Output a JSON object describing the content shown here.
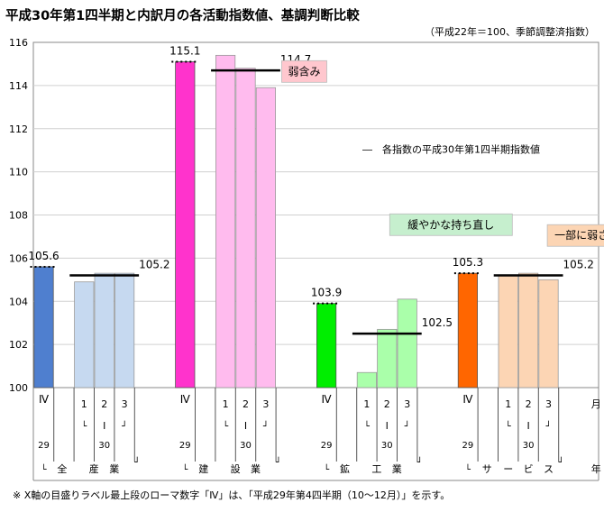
{
  "header": {
    "title": "平成30年第1四半期と内訳月の各活動指数値、基調判断比較",
    "subtitle": "（平成22年＝100、季節調整済指数）"
  },
  "footnote": "※ X軸の目盛りラベル最上段のローマ数字「Ⅳ」は、「平成29年第4四半期（10～12月）」を示す。",
  "colors": {
    "all_q4": "#4f7fcf",
    "all_month": "#c6d9f0",
    "const_q4": "#ff33cc",
    "const_month": "#ffbbee",
    "mining_q4": "#00ee00",
    "mining_month": "#aaffaa",
    "service_q4": "#ff6600",
    "service_month": "#fcd5b4",
    "ref_line": "#000000"
  },
  "chart_data": {
    "type": "bar",
    "ylim": [
      100,
      116
    ],
    "yticks": [
      100,
      102,
      104,
      106,
      108,
      110,
      112,
      114,
      116
    ],
    "grid": "horizontal",
    "groups": [
      {
        "name": "全産業",
        "sector_chars": [
          "全",
          "産",
          "業"
        ],
        "q4_label": "105.6",
        "q1_label": "105.2",
        "q4": 105.6,
        "months": [
          104.9,
          105.3,
          105.3
        ],
        "q1_2018": 105.2,
        "q4_color": "all_q4",
        "month_color": "all_month"
      },
      {
        "name": "建設業",
        "sector_chars": [
          "建",
          "設",
          "業"
        ],
        "q4_label": "115.1",
        "q1_label": "114.7",
        "q4": 115.1,
        "months": [
          115.4,
          114.8,
          113.9
        ],
        "q1_2018": 114.7,
        "q4_color": "const_q4",
        "month_color": "const_month"
      },
      {
        "name": "鉱工業",
        "sector_chars": [
          "鉱",
          "工",
          "業"
        ],
        "q4_label": "103.9",
        "q1_label": "102.5",
        "q4": 103.9,
        "months": [
          100.7,
          102.7,
          104.1
        ],
        "q1_2018": 102.5,
        "q4_color": "mining_q4",
        "month_color": "mining_month"
      },
      {
        "name": "サービス",
        "sector_chars": [
          "サ",
          "ー",
          "ビ",
          "ス"
        ],
        "q4_label": "105.3",
        "q1_label": "105.2",
        "q4": 105.3,
        "months": [
          105.2,
          105.3,
          105.0
        ],
        "q1_2018": 105.2,
        "q4_color": "service_q4",
        "month_color": "service_month"
      }
    ],
    "x_tick_labels": {
      "q4_roman": "Ⅳ",
      "q4_year": "29",
      "months": [
        "1",
        "2",
        "3"
      ],
      "q1_roman": "Ⅰ",
      "q1_year": "30",
      "month_axis": "月",
      "year_axis": "年",
      "bracket_open": "└",
      "bracket_close": "┘"
    },
    "annotations": [
      {
        "text": "弱含み",
        "group": 1,
        "bg": "#ffc7ce"
      },
      {
        "text": "緩やかな持ち直し",
        "group": 2,
        "bg": "#c6efce"
      },
      {
        "text": "一部に弱さ",
        "group": 3,
        "bg": "#fcd5b4"
      }
    ],
    "legend": {
      "text": "―　各指数の平成30年第1四半期指数値"
    }
  }
}
